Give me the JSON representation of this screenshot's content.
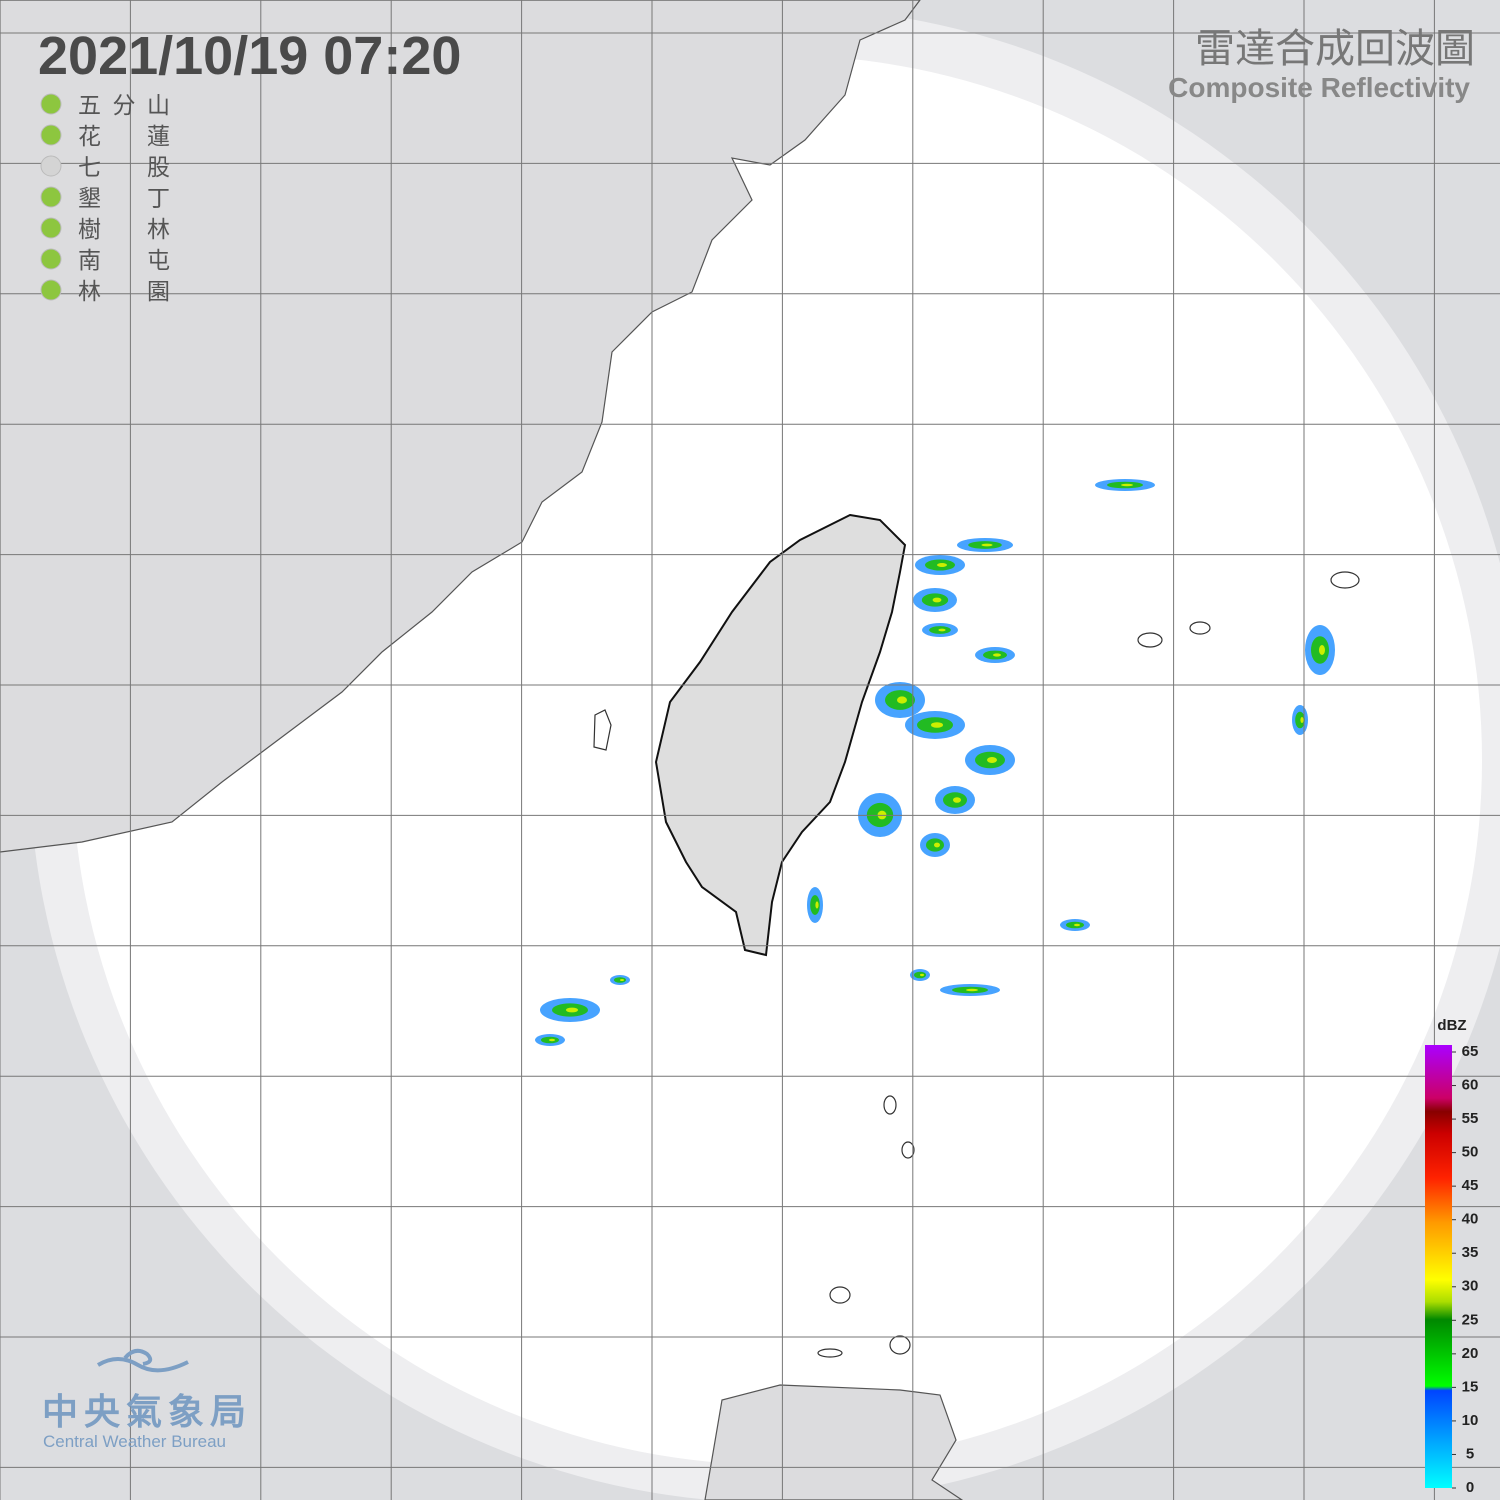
{
  "header": {
    "timestamp": "2021/10/19  07:20",
    "title": "雷達合成回波圖",
    "subtitle": "Composite Reflectivity"
  },
  "stations": [
    {
      "name": "五分山",
      "color": "#8dc63f"
    },
    {
      "name": "花蓮",
      "color": "#8dc63f"
    },
    {
      "name": "七股",
      "color": "#d4d4d4"
    },
    {
      "name": "墾丁",
      "color": "#8dc63f"
    },
    {
      "name": "樹林",
      "color": "#8dc63f"
    },
    {
      "name": "南屯",
      "color": "#8dc63f"
    },
    {
      "name": "林園",
      "color": "#8dc63f"
    }
  ],
  "colorbar": {
    "unit": "dBZ",
    "range": [
      0,
      65
    ],
    "ticks": [
      0,
      5,
      10,
      15,
      20,
      25,
      30,
      35,
      40,
      45,
      50,
      55,
      60,
      65
    ]
  },
  "logo": {
    "name": "中央氣象局",
    "name_en": "Central Weather Bureau"
  }
}
